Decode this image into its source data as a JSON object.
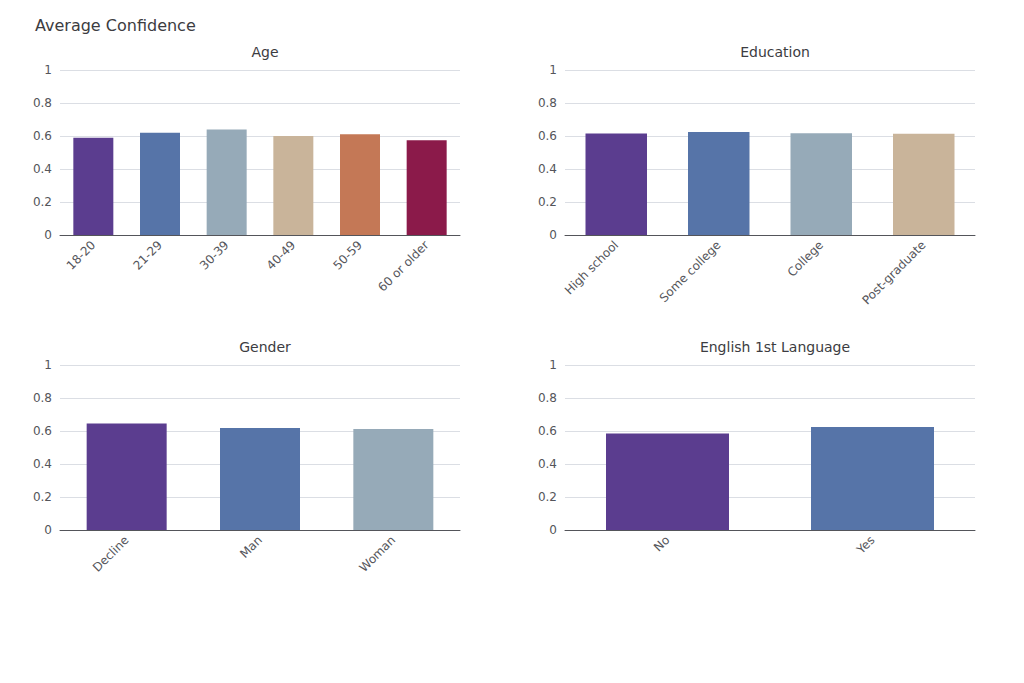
{
  "title": "Average Confidence",
  "chart_data": [
    {
      "type": "bar",
      "title": "Age",
      "categories": [
        "18-20",
        "21-29",
        "30-39",
        "40-49",
        "50-59",
        "60 or older"
      ],
      "values": [
        0.59,
        0.62,
        0.64,
        0.6,
        0.61,
        0.575
      ],
      "colors": [
        "#5b3d8f",
        "#5674a8",
        "#96aab8",
        "#c9b49a",
        "#c47856",
        "#8b1a4a"
      ],
      "ylim": [
        0,
        1
      ],
      "yticks": [
        0,
        0.2,
        0.4,
        0.6,
        0.8,
        1
      ],
      "grid": true
    },
    {
      "type": "bar",
      "title": "Education",
      "categories": [
        "High school",
        "Some college",
        "College",
        "Post-graduate"
      ],
      "values": [
        0.615,
        0.625,
        0.617,
        0.613
      ],
      "colors": [
        "#5b3d8f",
        "#5674a8",
        "#96aab8",
        "#c9b49a"
      ],
      "ylim": [
        0,
        1
      ],
      "yticks": [
        0,
        0.2,
        0.4,
        0.6,
        0.8,
        1
      ],
      "grid": true
    },
    {
      "type": "bar",
      "title": "Gender",
      "categories": [
        "Decline",
        "Man",
        "Woman"
      ],
      "values": [
        0.645,
        0.618,
        0.612
      ],
      "colors": [
        "#5b3d8f",
        "#5674a8",
        "#96aab8"
      ],
      "ylim": [
        0,
        1
      ],
      "yticks": [
        0,
        0.2,
        0.4,
        0.6,
        0.8,
        1
      ],
      "grid": true
    },
    {
      "type": "bar",
      "title": "English 1st Language",
      "categories": [
        "No",
        "Yes"
      ],
      "values": [
        0.585,
        0.625
      ],
      "colors": [
        "#5b3d8f",
        "#5674a8"
      ],
      "ylim": [
        0,
        1
      ],
      "yticks": [
        0,
        0.2,
        0.4,
        0.6,
        0.8,
        1
      ],
      "grid": true
    }
  ]
}
